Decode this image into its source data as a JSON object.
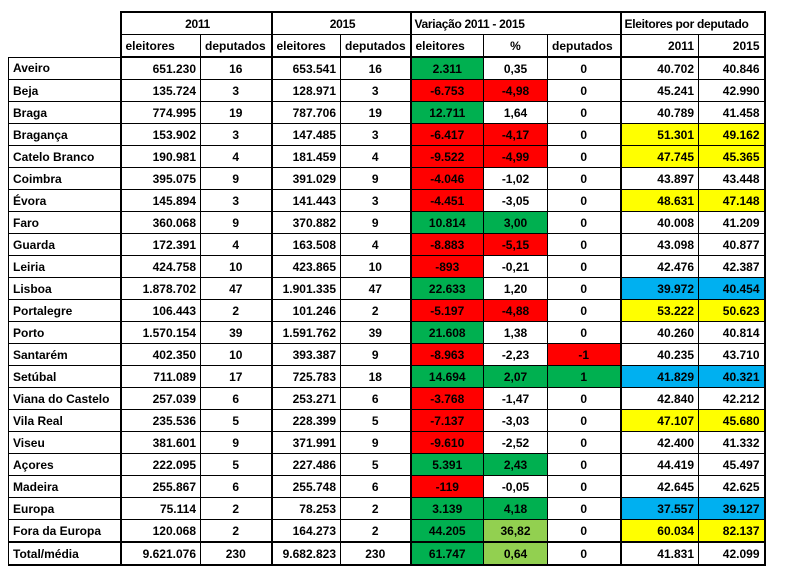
{
  "fill_colors": {
    "g": "#00B050",
    "lg": "#92D050",
    "r": "#FF0000",
    "y": "#FFFF00",
    "b": "#00B0F0"
  },
  "border_color": "#000000",
  "background_color": "#FFFFFF",
  "chart_data": {
    "type": "table",
    "title": "",
    "group_headers": [
      {
        "label": "",
        "span": 1
      },
      {
        "label": "2011",
        "span": 2
      },
      {
        "label": "2015",
        "span": 2
      },
      {
        "label": "Variação 2011 - 2015",
        "span": 3
      },
      {
        "label": "Eleitores por deputado",
        "span": 2
      }
    ],
    "sub_headers": [
      "",
      "eleitores",
      "deputados",
      "eleitores",
      "deputados",
      "eleitores",
      "%",
      "deputados",
      "2011",
      "2015"
    ],
    "rows": [
      {
        "label": "Aveiro",
        "values": [
          "651.230",
          "16",
          "653.541",
          "16",
          "2.311",
          "0,35",
          "0",
          "40.702",
          "40.846"
        ],
        "fills": [
          "",
          "",
          "",
          "",
          "g",
          "",
          "",
          "",
          ""
        ]
      },
      {
        "label": "Beja",
        "values": [
          "135.724",
          "3",
          "128.971",
          "3",
          "-6.753",
          "-4,98",
          "0",
          "45.241",
          "42.990"
        ],
        "fills": [
          "",
          "",
          "",
          "",
          "r",
          "r",
          "",
          "",
          ""
        ]
      },
      {
        "label": "Braga",
        "values": [
          "774.995",
          "19",
          "787.706",
          "19",
          "12.711",
          "1,64",
          "0",
          "40.789",
          "41.458"
        ],
        "fills": [
          "",
          "",
          "",
          "",
          "g",
          "",
          "",
          "",
          ""
        ]
      },
      {
        "label": "Bragança",
        "values": [
          "153.902",
          "3",
          "147.485",
          "3",
          "-6.417",
          "-4,17",
          "0",
          "51.301",
          "49.162"
        ],
        "fills": [
          "",
          "",
          "",
          "",
          "r",
          "r",
          "",
          "y",
          "y"
        ]
      },
      {
        "label": "Catelo Branco",
        "values": [
          "190.981",
          "4",
          "181.459",
          "4",
          "-9.522",
          "-4,99",
          "0",
          "47.745",
          "45.365"
        ],
        "fills": [
          "",
          "",
          "",
          "",
          "r",
          "r",
          "",
          "y",
          "y"
        ]
      },
      {
        "label": "Coimbra",
        "values": [
          "395.075",
          "9",
          "391.029",
          "9",
          "-4.046",
          "-1,02",
          "0",
          "43.897",
          "43.448"
        ],
        "fills": [
          "",
          "",
          "",
          "",
          "r",
          "",
          "",
          "",
          ""
        ]
      },
      {
        "label": "Évora",
        "values": [
          "145.894",
          "3",
          "141.443",
          "3",
          "-4.451",
          "-3,05",
          "0",
          "48.631",
          "47.148"
        ],
        "fills": [
          "",
          "",
          "",
          "",
          "r",
          "",
          "",
          "y",
          "y"
        ]
      },
      {
        "label": "Faro",
        "values": [
          "360.068",
          "9",
          "370.882",
          "9",
          "10.814",
          "3,00",
          "0",
          "40.008",
          "41.209"
        ],
        "fills": [
          "",
          "",
          "",
          "",
          "g",
          "g",
          "",
          "",
          ""
        ]
      },
      {
        "label": "Guarda",
        "values": [
          "172.391",
          "4",
          "163.508",
          "4",
          "-8.883",
          "-5,15",
          "0",
          "43.098",
          "40.877"
        ],
        "fills": [
          "",
          "",
          "",
          "",
          "r",
          "r",
          "",
          "",
          ""
        ]
      },
      {
        "label": "Leiria",
        "values": [
          "424.758",
          "10",
          "423.865",
          "10",
          "-893",
          "-0,21",
          "0",
          "42.476",
          "42.387"
        ],
        "fills": [
          "",
          "",
          "",
          "",
          "r",
          "",
          "",
          "",
          ""
        ]
      },
      {
        "label": "Lisboa",
        "values": [
          "1.878.702",
          "47",
          "1.901.335",
          "47",
          "22.633",
          "1,20",
          "0",
          "39.972",
          "40.454"
        ],
        "fills": [
          "",
          "",
          "",
          "",
          "g",
          "",
          "",
          "b",
          "b"
        ]
      },
      {
        "label": "Portalegre",
        "values": [
          "106.443",
          "2",
          "101.246",
          "2",
          "-5.197",
          "-4,88",
          "0",
          "53.222",
          "50.623"
        ],
        "fills": [
          "",
          "",
          "",
          "",
          "r",
          "r",
          "",
          "y",
          "y"
        ]
      },
      {
        "label": "Porto",
        "values": [
          "1.570.154",
          "39",
          "1.591.762",
          "39",
          "21.608",
          "1,38",
          "0",
          "40.260",
          "40.814"
        ],
        "fills": [
          "",
          "",
          "",
          "",
          "g",
          "",
          "",
          "",
          ""
        ]
      },
      {
        "label": "Santarém",
        "values": [
          "402.350",
          "10",
          "393.387",
          "9",
          "-8.963",
          "-2,23",
          "-1",
          "40.235",
          "43.710"
        ],
        "fills": [
          "",
          "",
          "",
          "",
          "r",
          "",
          "r",
          "",
          ""
        ]
      },
      {
        "label": "Setúbal",
        "values": [
          "711.089",
          "17",
          "725.783",
          "18",
          "14.694",
          "2,07",
          "1",
          "41.829",
          "40.321"
        ],
        "fills": [
          "",
          "",
          "",
          "",
          "g",
          "g",
          "g",
          "b",
          "b"
        ]
      },
      {
        "label": "Viana do Castelo",
        "values": [
          "257.039",
          "6",
          "253.271",
          "6",
          "-3.768",
          "-1,47",
          "0",
          "42.840",
          "42.212"
        ],
        "fills": [
          "",
          "",
          "",
          "",
          "r",
          "",
          "",
          "",
          ""
        ]
      },
      {
        "label": "Vila Real",
        "values": [
          "235.536",
          "5",
          "228.399",
          "5",
          "-7.137",
          "-3,03",
          "0",
          "47.107",
          "45.680"
        ],
        "fills": [
          "",
          "",
          "",
          "",
          "r",
          "",
          "",
          "y",
          "y"
        ]
      },
      {
        "label": "Viseu",
        "values": [
          "381.601",
          "9",
          "371.991",
          "9",
          "-9.610",
          "-2,52",
          "0",
          "42.400",
          "41.332"
        ],
        "fills": [
          "",
          "",
          "",
          "",
          "r",
          "",
          "",
          "",
          ""
        ]
      },
      {
        "label": "Açores",
        "values": [
          "222.095",
          "5",
          "227.486",
          "5",
          "5.391",
          "2,43",
          "0",
          "44.419",
          "45.497"
        ],
        "fills": [
          "",
          "",
          "",
          "",
          "g",
          "g",
          "",
          "",
          ""
        ]
      },
      {
        "label": "Madeira",
        "values": [
          "255.867",
          "6",
          "255.748",
          "6",
          "-119",
          "-0,05",
          "0",
          "42.645",
          "42.625"
        ],
        "fills": [
          "",
          "",
          "",
          "",
          "r",
          "",
          "",
          "",
          ""
        ]
      },
      {
        "label": "Europa",
        "values": [
          "75.114",
          "2",
          "78.253",
          "2",
          "3.139",
          "4,18",
          "0",
          "37.557",
          "39.127"
        ],
        "fills": [
          "",
          "",
          "",
          "",
          "g",
          "g",
          "",
          "b",
          "b"
        ]
      },
      {
        "label": "Fora da Europa",
        "values": [
          "120.068",
          "2",
          "164.273",
          "2",
          "44.205",
          "36,82",
          "0",
          "60.034",
          "82.137"
        ],
        "fills": [
          "",
          "",
          "",
          "",
          "g",
          "lg",
          "",
          "y",
          "y"
        ]
      },
      {
        "label": "Total/média",
        "values": [
          "9.621.076",
          "230",
          "9.682.823",
          "230",
          "61.747",
          "0,64",
          "0",
          "41.831",
          "42.099"
        ],
        "fills": [
          "",
          "",
          "",
          "",
          "g",
          "lg",
          "",
          "",
          ""
        ],
        "is_total": true
      }
    ]
  }
}
